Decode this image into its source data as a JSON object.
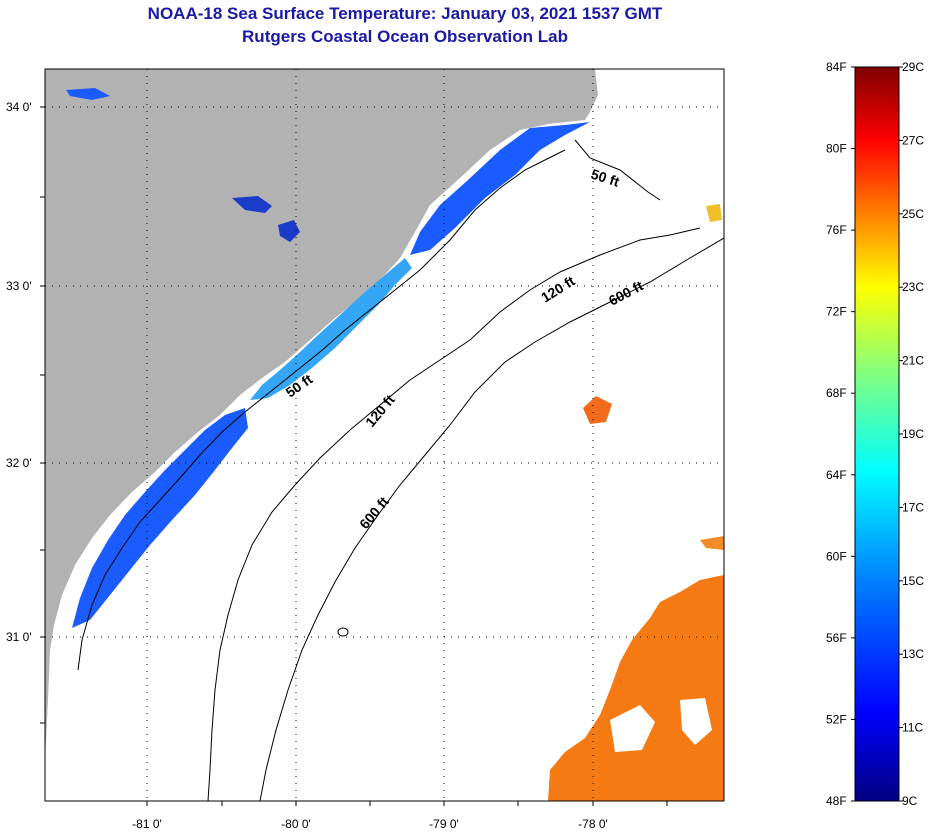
{
  "title": {
    "line1": "NOAA-18 Sea Surface Temperature:  January 03, 2021 1537 GMT",
    "line2": "Rutgers Coastal Ocean Observation Lab"
  },
  "axes": {
    "lat_labels": [
      "34 0'",
      "33 0'",
      "32 0'",
      "31 0'"
    ],
    "lon_labels": [
      "-81 0'",
      "-80 0'",
      "-79 0'",
      "-78 0'"
    ]
  },
  "contours": {
    "c50a": "50 ft",
    "c50b": "50 ft",
    "c120a": "120 ft",
    "c120b": "120 ft",
    "c600a": "600 ft",
    "c600b": "600 ft"
  },
  "colorbar": {
    "fahrenheit": [
      "84F",
      "80F",
      "76F",
      "72F",
      "68F",
      "64F",
      "60F",
      "56F",
      "52F",
      "48F"
    ],
    "celsius": [
      "29C",
      "27C",
      "25C",
      "23C",
      "21C",
      "19C",
      "17C",
      "15C",
      "13C",
      "11C",
      "9C"
    ],
    "colors": [
      "#000080",
      "#0000ff",
      "#0080ff",
      "#00ffff",
      "#80ff80",
      "#ffff00",
      "#ff8000",
      "#ff0000",
      "#800000"
    ]
  },
  "colors": {
    "land": "#b2b2b2",
    "ocean": "#ffffff",
    "cold_water": "#1a5cff",
    "mid_water": "#35a6f5",
    "warm_water": "#f57a14",
    "title_blue": "#1a1aa6"
  }
}
